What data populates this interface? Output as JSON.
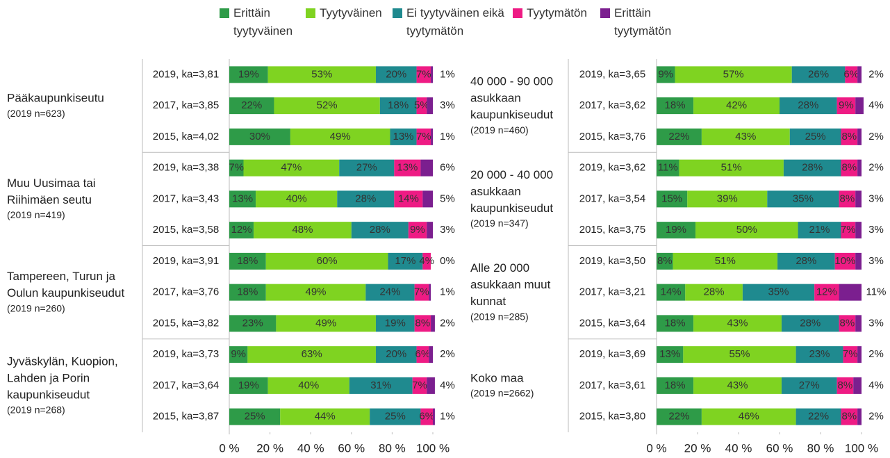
{
  "chart_data": [
    {
      "type": "bar",
      "orientation": "horizontal",
      "stacked": true,
      "series": [
        {
          "name": "Erittäin tyytyväinen",
          "color": "#2e9b48",
          "values": [
            19,
            22,
            30,
            7,
            13,
            12,
            18,
            18,
            23,
            9,
            19,
            25
          ],
          "value_labels": [
            "19%",
            "22%",
            "30%",
            "7%",
            "13%",
            "12%",
            "18%",
            "18%",
            "23%",
            "9%",
            "19%",
            "25%"
          ]
        },
        {
          "name": "Tyytyväinen",
          "color": "#7fd321",
          "values": [
            53,
            52,
            49,
            47,
            40,
            48,
            60,
            49,
            49,
            63,
            40,
            44
          ],
          "value_labels": [
            "53%",
            "52%",
            "49%",
            "47%",
            "40%",
            "48%",
            "60%",
            "49%",
            "49%",
            "63%",
            "40%",
            "44%"
          ]
        },
        {
          "name": "Ei tyytyväinen eikä tyytymätön",
          "color": "#1f8a8f",
          "values": [
            20,
            18,
            13,
            27,
            28,
            28,
            17,
            24,
            19,
            20,
            31,
            25
          ],
          "value_labels": [
            "20%",
            "18%",
            "13%",
            "27%",
            "28%",
            "28%",
            "17%",
            "24%",
            "19%",
            "20%",
            "31%",
            "25%"
          ]
        },
        {
          "name": "Tyytymätön",
          "color": "#ee1b84",
          "values": [
            7,
            5,
            7,
            13,
            14,
            9,
            4,
            7,
            8,
            6,
            7,
            6
          ],
          "value_labels": [
            "7%",
            "5%",
            "7%",
            "13%",
            "14%",
            "9%",
            "4%",
            "7%",
            "8%",
            "6%",
            "7%",
            "6%"
          ]
        },
        {
          "name": "Erittäin tyytymätön",
          "color": "#7b1f8f",
          "values": [
            1,
            3,
            1,
            6,
            5,
            3,
            0,
            1,
            2,
            2,
            4,
            1
          ],
          "value_labels": [
            "1%",
            "3%",
            "1%",
            "6%",
            "5%",
            "3%",
            "0%",
            "1%",
            "2%",
            "2%",
            "4%",
            "1%"
          ]
        }
      ],
      "categories": [
        "2019, ka=3,81",
        "2017, ka=3,85",
        "2015, ka=4,02",
        "2019, ka=3,38",
        "2017, ka=3,43",
        "2015, ka=3,58",
        "2019, ka=3,91",
        "2017, ka=3,76",
        "2015, ka=3,82",
        "2019, ka=3,73",
        "2017, ka=3,64",
        "2015, ka=3,87"
      ],
      "groups": [
        {
          "lines": [
            "Pääkaupunkiseutu"
          ],
          "n": "(2019 n=623)"
        },
        {
          "lines": [
            "Muu Uusimaa tai",
            "Riihimäen seutu"
          ],
          "n": "(2019 n=419)"
        },
        {
          "lines": [
            "Tampereen, Turun ja",
            "Oulun kaupunkiseudut"
          ],
          "n": "(2019 n=260)"
        },
        {
          "lines": [
            "Jyväskylän, Kuopion,",
            "Lahden ja Porin",
            "kaupunkiseudut"
          ],
          "n": "(2019 n=268)"
        }
      ],
      "xlim": [
        0,
        100
      ],
      "xticks": [
        {
          "value": 0,
          "label": "0 %"
        },
        {
          "value": 20,
          "label": "20 %"
        },
        {
          "value": 40,
          "label": "40 %"
        },
        {
          "value": 60,
          "label": "60 %"
        },
        {
          "value": 80,
          "label": "80 %"
        },
        {
          "value": 100,
          "label": "100 %"
        }
      ]
    },
    {
      "type": "bar",
      "orientation": "horizontal",
      "stacked": true,
      "series": [
        {
          "color": "#2e9b48",
          "values": [
            9,
            18,
            22,
            11,
            15,
            19,
            8,
            14,
            18,
            13,
            18,
            22
          ],
          "value_labels": [
            "9%",
            "18%",
            "22%",
            "11%",
            "15%",
            "19%",
            "8%",
            "14%",
            "18%",
            "13%",
            "18%",
            "22%"
          ]
        },
        {
          "color": "#7fd321",
          "values": [
            57,
            42,
            43,
            51,
            39,
            50,
            51,
            28,
            43,
            55,
            43,
            46
          ],
          "value_labels": [
            "57%",
            "42%",
            "43%",
            "51%",
            "39%",
            "50%",
            "51%",
            "28%",
            "43%",
            "55%",
            "43%",
            "46%"
          ]
        },
        {
          "color": "#1f8a8f",
          "values": [
            26,
            28,
            25,
            28,
            35,
            21,
            28,
            35,
            28,
            23,
            27,
            22
          ],
          "value_labels": [
            "26%",
            "28%",
            "25%",
            "28%",
            "35%",
            "21%",
            "28%",
            "35%",
            "28%",
            "23%",
            "27%",
            "22%"
          ]
        },
        {
          "color": "#ee1b84",
          "values": [
            6,
            9,
            8,
            8,
            8,
            7,
            10,
            12,
            8,
            7,
            8,
            8
          ],
          "value_labels": [
            "6%",
            "9%",
            "8%",
            "8%",
            "8%",
            "7%",
            "10%",
            "12%",
            "8%",
            "7%",
            "8%",
            "8%"
          ]
        },
        {
          "color": "#7b1f8f",
          "values": [
            2,
            4,
            2,
            2,
            3,
            3,
            3,
            11,
            3,
            2,
            4,
            2
          ],
          "value_labels": [
            "2%",
            "4%",
            "2%",
            "2%",
            "3%",
            "3%",
            "3%",
            "11%",
            "3%",
            "2%",
            "4%",
            "2%"
          ]
        }
      ],
      "categories": [
        "2019, ka=3,65",
        "2017, ka=3,62",
        "2015, ka=3,76",
        "2019, ka=3,62",
        "2017, ka=3,54",
        "2015, ka=3,75",
        "2019, ka=3,50",
        "2017, ka=3,21",
        "2015, ka=3,64",
        "2019, ka=3,69",
        "2017, ka=3,61",
        "2015, ka=3,80"
      ],
      "groups": [
        {
          "lines": [
            "40 000 - 90 000",
            "asukkaan",
            "kaupunkiseudut"
          ],
          "n": "(2019 n=460)"
        },
        {
          "lines": [
            "20 000 - 40 000",
            "asukkaan",
            "kaupunkiseudut"
          ],
          "n": "(2019 n=347)"
        },
        {
          "lines": [
            "Alle 20 000",
            "asukkaan muut",
            "kunnat"
          ],
          "n": "(2019 n=285)"
        },
        {
          "lines": [
            "Koko maa"
          ],
          "n": "(2019 n=2662)"
        }
      ],
      "xlim": [
        0,
        100
      ],
      "xticks": [
        {
          "value": 0,
          "label": "0 %"
        },
        {
          "value": 20,
          "label": "20 %"
        },
        {
          "value": 40,
          "label": "40 %"
        },
        {
          "value": 60,
          "label": "60 %"
        },
        {
          "value": 80,
          "label": "80 %"
        },
        {
          "value": 100,
          "label": "100 %"
        }
      ]
    }
  ]
}
